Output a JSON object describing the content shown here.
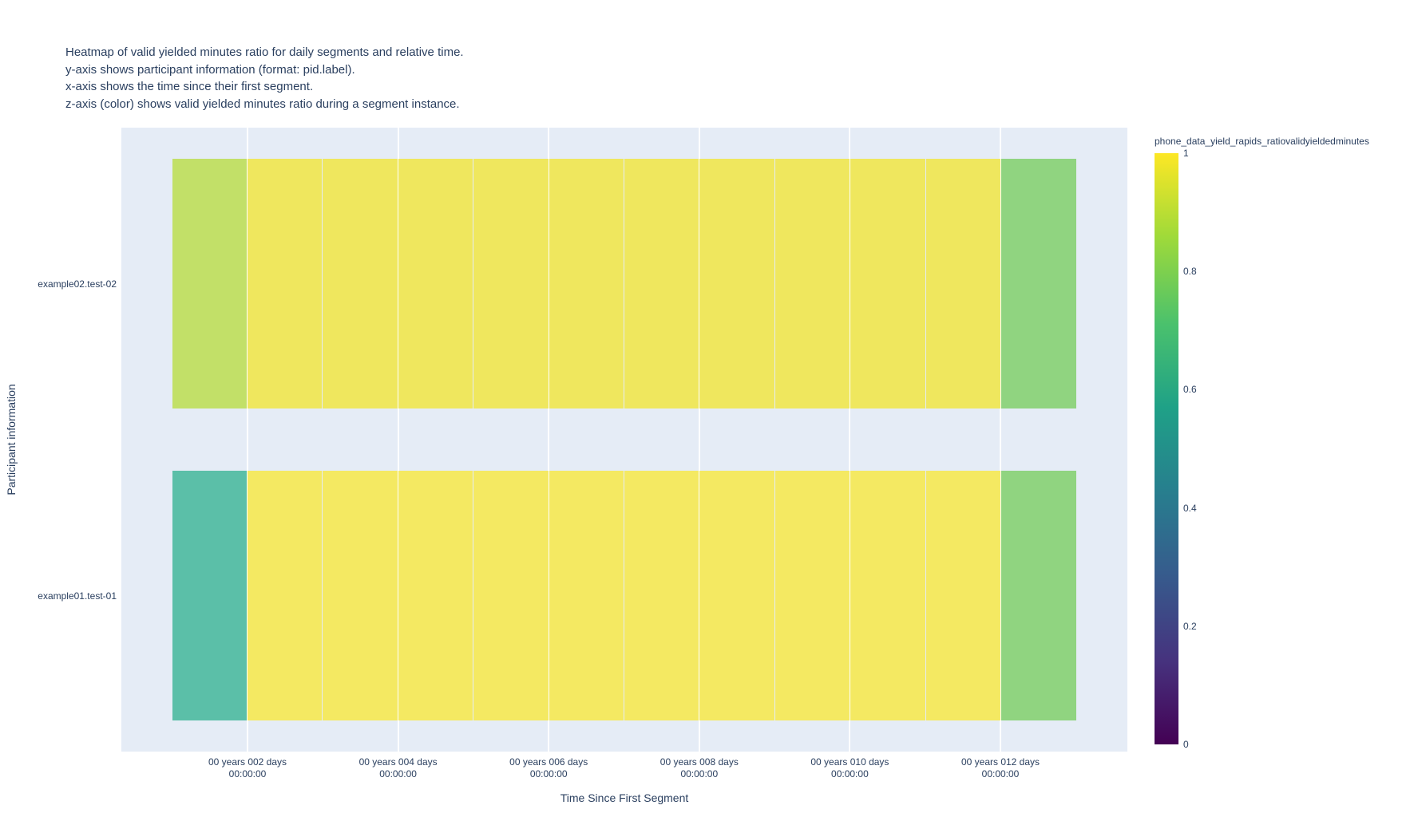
{
  "title": {
    "lines": [
      "Heatmap of valid yielded minutes ratio for daily segments and relative time.",
      "y-axis shows participant information (format: pid.label).",
      "x-axis shows the time since their first segment.",
      "z-axis (color) shows valid yielded minutes ratio during a segment instance."
    ]
  },
  "axes": {
    "x_title": "Time Since First Segment",
    "y_title": "Participant information"
  },
  "colorbar": {
    "title": "phone_data_yield_rapids_ratiovalidyieldedminutes",
    "tick_labels": [
      "1",
      "0.8",
      "0.6",
      "0.4",
      "0.2",
      "0"
    ],
    "zmin": 0,
    "zmax": 1,
    "colorscale": "Viridis"
  },
  "colors": {
    "plot_background": "#e5ecf6",
    "gridline": "#ffffff",
    "text": "#2a3f5f"
  },
  "chart_data": {
    "type": "heatmap",
    "title": "Heatmap of valid yielded minutes ratio for daily segments and relative time.",
    "xlabel": "Time Since First Segment",
    "ylabel": "Participant information",
    "x_tick_labels": [
      "00 years 002 days\n00:00:00",
      "00 years 004 days\n00:00:00",
      "00 years 006 days\n00:00:00",
      "00 years 008 days\n00:00:00",
      "00 years 010 days\n00:00:00",
      "00 years 012 days\n00:00:00"
    ],
    "x_bin_days": 1,
    "n_cols": 12,
    "grid": true,
    "legend_position": "right-colorbar",
    "rows": [
      {
        "label": "example02.test-02",
        "z_estimates": [
          0.85,
          0.97,
          0.97,
          0.97,
          0.97,
          0.97,
          0.97,
          0.97,
          0.97,
          0.97,
          0.97,
          0.75
        ],
        "cell_colors": [
          "#c2e068",
          "#efe75e",
          "#efe75e",
          "#efe75e",
          "#efe75e",
          "#efe75e",
          "#efe75e",
          "#efe75e",
          "#efe75e",
          "#efe75e",
          "#efe75e",
          "#90d480"
        ]
      },
      {
        "label": "example01.test-01",
        "z_estimates": [
          0.6,
          0.98,
          0.98,
          0.98,
          0.98,
          0.98,
          0.98,
          0.98,
          0.98,
          0.98,
          0.98,
          0.75
        ],
        "cell_colors": [
          "#5bbfa8",
          "#f4e962",
          "#f4e962",
          "#f4e962",
          "#f4e962",
          "#f4e962",
          "#f4e962",
          "#f4e962",
          "#f4e962",
          "#f4e962",
          "#f4e962",
          "#90d480"
        ]
      }
    ]
  }
}
